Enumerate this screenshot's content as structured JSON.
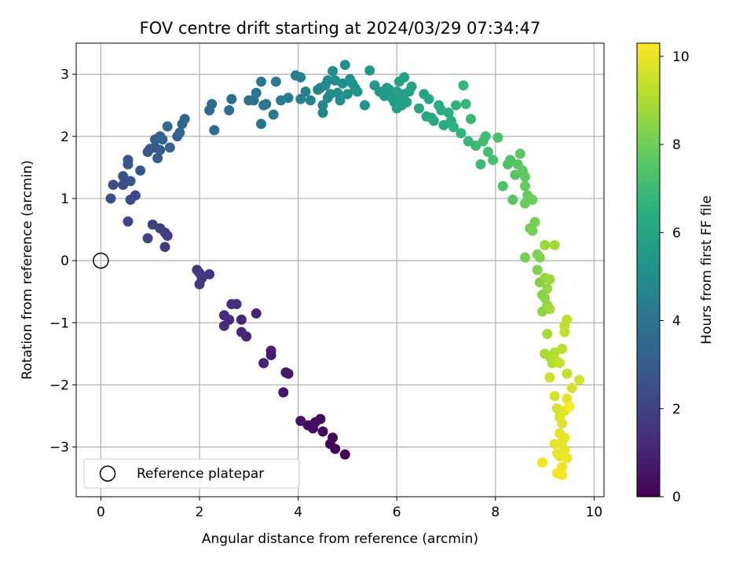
{
  "chart_data": {
    "type": "scatter",
    "title": "FOV centre drift starting at 2024/03/29 07:34:47",
    "xlabel": "Angular distance from reference (arcmin)",
    "ylabel": "Rotation from reference (arcmin)",
    "xlim": [
      -0.5,
      10.2
    ],
    "ylim": [
      -3.8,
      3.5
    ],
    "xticks": [
      0,
      2,
      4,
      6,
      8,
      10
    ],
    "yticks": [
      -3,
      -2,
      -1,
      0,
      1,
      2,
      3
    ],
    "grid": true,
    "colormap": "viridis",
    "colorbar": {
      "label": "Hours from first FF file",
      "min": 0,
      "max": 10.3,
      "ticks": [
        0,
        2,
        4,
        6,
        8,
        10
      ]
    },
    "reference": {
      "label": "Reference platepar",
      "x": 0,
      "y": 0
    },
    "legend_position": "lower-left",
    "points": [
      [
        4.95,
        -3.12,
        0.05
      ],
      [
        4.75,
        -3.03,
        0.1
      ],
      [
        4.65,
        -2.95,
        0.15
      ],
      [
        4.7,
        -2.85,
        0.2
      ],
      [
        4.5,
        -2.75,
        0.25
      ],
      [
        4.45,
        -2.55,
        0.3
      ],
      [
        4.3,
        -2.7,
        0.35
      ],
      [
        4.35,
        -2.6,
        0.4
      ],
      [
        4.2,
        -2.65,
        0.45
      ],
      [
        4.05,
        -2.58,
        0.5
      ],
      [
        3.7,
        -2.12,
        0.6
      ],
      [
        3.8,
        -1.82,
        0.7
      ],
      [
        3.75,
        -1.8,
        0.75
      ],
      [
        3.45,
        -1.52,
        0.8
      ],
      [
        3.45,
        -1.45,
        0.85
      ],
      [
        3.3,
        -1.65,
        0.9
      ],
      [
        3.15,
        -0.85,
        1.0
      ],
      [
        2.95,
        -1.22,
        1.05
      ],
      [
        2.85,
        -1.15,
        1.1
      ],
      [
        2.85,
        -0.95,
        1.15
      ],
      [
        2.6,
        -0.95,
        1.2
      ],
      [
        2.5,
        -1.05,
        1.25
      ],
      [
        2.5,
        -0.88,
        1.3
      ],
      [
        2.65,
        -0.7,
        1.35
      ],
      [
        2.75,
        -0.7,
        1.4
      ],
      [
        2.2,
        -0.22,
        1.5
      ],
      [
        2.05,
        -0.28,
        1.55
      ],
      [
        2.0,
        -0.38,
        1.6
      ],
      [
        1.95,
        -0.15,
        1.65
      ],
      [
        2.0,
        -0.2,
        1.7
      ],
      [
        1.3,
        0.22,
        1.8
      ],
      [
        1.35,
        0.4,
        1.85
      ],
      [
        1.3,
        0.45,
        1.9
      ],
      [
        1.2,
        0.52,
        1.95
      ],
      [
        1.05,
        0.58,
        2.0
      ],
      [
        0.95,
        0.36,
        2.05
      ],
      [
        0.55,
        0.63,
        2.15
      ],
      [
        0.7,
        1.05,
        2.3
      ],
      [
        0.6,
        0.98,
        2.35
      ],
      [
        0.2,
        1.0,
        2.4
      ],
      [
        0.25,
        1.22,
        2.45
      ],
      [
        0.45,
        1.22,
        2.5
      ],
      [
        0.45,
        1.36,
        2.55
      ],
      [
        0.6,
        1.28,
        2.6
      ],
      [
        0.55,
        1.62,
        2.65
      ],
      [
        0.55,
        1.55,
        2.7
      ],
      [
        0.8,
        1.45,
        2.75
      ],
      [
        0.95,
        1.75,
        2.8
      ],
      [
        1.0,
        1.8,
        2.85
      ],
      [
        1.1,
        1.82,
        2.9
      ],
      [
        1.15,
        1.65,
        2.95
      ],
      [
        1.2,
        1.78,
        3.0
      ],
      [
        1.1,
        1.95,
        3.05
      ],
      [
        1.2,
        2.0,
        3.1
      ],
      [
        1.25,
        1.95,
        3.15
      ],
      [
        1.4,
        1.82,
        3.2
      ],
      [
        1.55,
        2.0,
        3.25
      ],
      [
        1.6,
        2.06,
        3.3
      ],
      [
        1.65,
        2.2,
        3.35
      ],
      [
        1.7,
        2.28,
        3.4
      ],
      [
        1.35,
        2.16,
        3.45
      ],
      [
        2.2,
        2.42,
        3.55
      ],
      [
        2.25,
        2.52,
        3.6
      ],
      [
        2.3,
        2.1,
        3.65
      ],
      [
        2.6,
        2.42,
        3.7
      ],
      [
        2.65,
        2.6,
        3.75
      ],
      [
        3.0,
        2.58,
        3.8
      ],
      [
        3.1,
        2.58,
        3.85
      ],
      [
        3.15,
        2.7,
        3.9
      ],
      [
        3.25,
        2.2,
        3.95
      ],
      [
        3.3,
        2.5,
        4.0
      ],
      [
        3.35,
        2.52,
        4.05
      ],
      [
        3.25,
        2.88,
        4.1
      ],
      [
        3.5,
        2.35,
        4.15
      ],
      [
        3.55,
        2.88,
        4.2
      ],
      [
        3.65,
        2.58,
        4.25
      ],
      [
        3.8,
        2.62,
        4.3
      ],
      [
        3.95,
        2.98,
        4.35
      ],
      [
        4.05,
        2.6,
        4.4
      ],
      [
        4.05,
        2.95,
        4.45
      ],
      [
        4.15,
        2.72,
        4.5
      ],
      [
        4.25,
        2.58,
        4.55
      ],
      [
        4.4,
        2.75,
        4.6
      ],
      [
        4.45,
        2.78,
        4.65
      ],
      [
        4.5,
        2.5,
        4.7
      ],
      [
        4.5,
        2.38,
        4.75
      ],
      [
        4.55,
        2.82,
        4.8
      ],
      [
        4.6,
        2.62,
        4.85
      ],
      [
        4.6,
        2.9,
        4.9
      ],
      [
        4.65,
        2.68,
        4.95
      ],
      [
        4.7,
        3.05,
        5.0
      ],
      [
        4.75,
        2.9,
        5.02
      ],
      [
        4.8,
        2.7,
        5.05
      ],
      [
        4.85,
        2.58,
        5.08
      ],
      [
        4.9,
        2.85,
        5.1
      ],
      [
        4.95,
        3.15,
        5.12
      ],
      [
        5.0,
        2.68,
        5.15
      ],
      [
        5.05,
        2.92,
        5.18
      ],
      [
        5.1,
        2.85,
        5.2
      ],
      [
        5.15,
        2.78,
        5.22
      ],
      [
        5.2,
        2.72,
        5.25
      ],
      [
        5.35,
        2.5,
        5.3
      ],
      [
        5.45,
        3.06,
        5.35
      ],
      [
        5.55,
        2.82,
        5.4
      ],
      [
        5.65,
        2.72,
        5.45
      ],
      [
        5.75,
        2.65,
        5.5
      ],
      [
        5.8,
        2.78,
        5.55
      ],
      [
        5.85,
        2.75,
        5.6
      ],
      [
        5.9,
        2.62,
        5.65
      ],
      [
        5.95,
        2.55,
        5.7
      ],
      [
        6.0,
        2.45,
        5.72
      ],
      [
        6.0,
        2.72,
        5.75
      ],
      [
        6.05,
        2.88,
        5.78
      ],
      [
        6.1,
        2.62,
        5.8
      ],
      [
        6.1,
        2.5,
        5.82
      ],
      [
        6.15,
        2.68,
        5.85
      ],
      [
        6.15,
        2.95,
        5.88
      ],
      [
        6.2,
        2.55,
        5.9
      ],
      [
        6.25,
        2.72,
        5.92
      ],
      [
        6.3,
        2.8,
        5.95
      ],
      [
        6.45,
        2.45,
        6.0
      ],
      [
        6.55,
        2.68,
        6.05
      ],
      [
        6.6,
        2.32,
        6.1
      ],
      [
        6.65,
        2.6,
        6.15
      ],
      [
        6.7,
        2.3,
        6.2
      ],
      [
        6.75,
        2.25,
        6.25
      ],
      [
        6.85,
        2.5,
        6.3
      ],
      [
        6.9,
        2.42,
        6.35
      ],
      [
        6.95,
        2.18,
        6.4
      ],
      [
        7.05,
        2.38,
        6.45
      ],
      [
        7.1,
        2.25,
        6.5
      ],
      [
        7.15,
        2.15,
        6.55
      ],
      [
        7.2,
        2.5,
        6.6
      ],
      [
        7.3,
        2.05,
        6.65
      ],
      [
        7.35,
        2.82,
        6.7
      ],
      [
        7.4,
        2.52,
        6.75
      ],
      [
        7.45,
        1.92,
        6.8
      ],
      [
        7.5,
        2.28,
        6.85
      ],
      [
        7.6,
        1.85,
        6.9
      ],
      [
        7.7,
        1.55,
        7.0
      ],
      [
        7.75,
        1.92,
        7.05
      ],
      [
        7.8,
        2.0,
        7.1
      ],
      [
        7.85,
        1.75,
        7.15
      ],
      [
        7.95,
        1.62,
        7.2
      ],
      [
        8.05,
        1.98,
        7.3
      ],
      [
        8.15,
        1.2,
        7.35
      ],
      [
        8.25,
        1.55,
        7.4
      ],
      [
        8.3,
        1.62,
        7.45
      ],
      [
        8.35,
        0.98,
        7.5
      ],
      [
        8.4,
        1.38,
        7.55
      ],
      [
        8.45,
        1.55,
        7.6
      ],
      [
        8.5,
        1.72,
        7.65
      ],
      [
        8.55,
        1.45,
        7.7
      ],
      [
        8.6,
        1.35,
        7.75
      ],
      [
        8.6,
        1.2,
        7.8
      ],
      [
        8.65,
        1.05,
        7.85
      ],
      [
        8.6,
        0.92,
        7.9
      ],
      [
        8.7,
        0.52,
        7.95
      ],
      [
        8.75,
        0.98,
        8.0
      ],
      [
        8.8,
        0.62,
        8.05
      ],
      [
        8.6,
        0.05,
        8.1
      ],
      [
        8.75,
        0.48,
        8.15
      ],
      [
        8.85,
        0.1,
        8.2
      ],
      [
        8.85,
        -0.15,
        8.25
      ],
      [
        8.9,
        0.05,
        8.3
      ],
      [
        8.9,
        -0.35,
        8.35
      ],
      [
        8.95,
        -0.55,
        8.4
      ],
      [
        8.95,
        -0.82,
        8.45
      ],
      [
        9.0,
        -0.6,
        8.5
      ],
      [
        9.0,
        -0.28,
        8.55
      ],
      [
        9.05,
        -0.45,
        8.6
      ],
      [
        9.05,
        -0.72,
        8.65
      ],
      [
        9.1,
        -0.3,
        8.7
      ],
      [
        9.0,
        0.25,
        8.75
      ],
      [
        9.1,
        -0.78,
        8.8
      ],
      [
        9.2,
        0.25,
        8.85
      ],
      [
        9.05,
        -1.18,
        8.9
      ],
      [
        9.0,
        -1.5,
        8.95
      ],
      [
        9.1,
        -1.55,
        9.0
      ],
      [
        9.15,
        -1.65,
        9.05
      ],
      [
        9.2,
        -1.48,
        9.1
      ],
      [
        9.25,
        -1.62,
        9.15
      ],
      [
        9.35,
        -1.42,
        9.2
      ],
      [
        9.45,
        -0.95,
        9.25
      ],
      [
        9.4,
        -1.05,
        9.3
      ],
      [
        9.4,
        -1.15,
        9.35
      ],
      [
        9.45,
        -1.82,
        9.4
      ],
      [
        9.3,
        -1.65,
        9.45
      ],
      [
        9.1,
        -1.88,
        9.5
      ],
      [
        9.7,
        -1.92,
        9.55
      ],
      [
        9.55,
        -2.05,
        9.6
      ],
      [
        9.2,
        -2.18,
        9.65
      ],
      [
        9.25,
        -2.38,
        9.7
      ],
      [
        9.3,
        -2.52,
        9.75
      ],
      [
        9.35,
        -2.62,
        9.8
      ],
      [
        9.4,
        -2.42,
        9.82
      ],
      [
        9.45,
        -2.22,
        9.85
      ],
      [
        9.3,
        -2.78,
        9.88
      ],
      [
        9.35,
        -2.92,
        9.9
      ],
      [
        9.2,
        -2.95,
        9.92
      ],
      [
        9.25,
        -3.1,
        9.95
      ],
      [
        9.3,
        -3.15,
        9.97
      ],
      [
        9.4,
        -3.05,
        10.0
      ],
      [
        9.4,
        -2.85,
        10.02
      ],
      [
        9.45,
        -3.18,
        10.05
      ],
      [
        9.35,
        -3.32,
        10.08
      ],
      [
        8.95,
        -3.25,
        10.1
      ],
      [
        9.25,
        -3.42,
        10.15
      ],
      [
        9.35,
        -3.45,
        10.2
      ],
      [
        9.5,
        -2.35,
        10.25
      ]
    ]
  }
}
